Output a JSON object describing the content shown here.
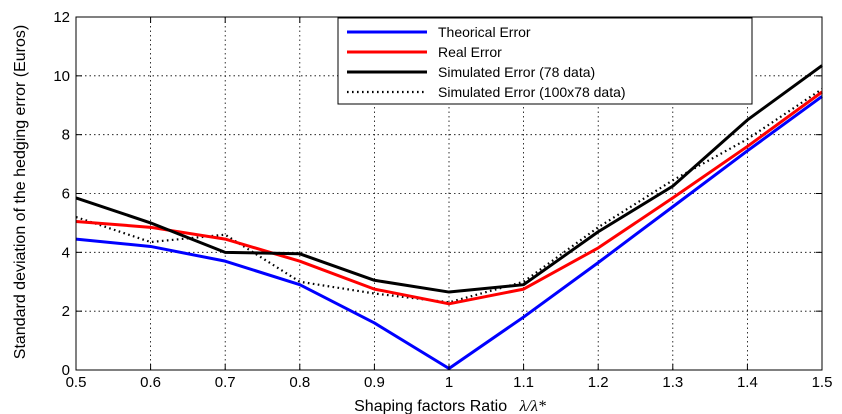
{
  "chart_data": {
    "type": "line",
    "title": "",
    "xlabel": "Shaping factors Ratio",
    "xlabel_symbol": "λ/λ*",
    "ylabel": "Standard deviation of the hedging error (Euros)",
    "x": [
      0.5,
      0.6,
      0.7,
      0.8,
      0.9,
      1.0,
      1.1,
      1.2,
      1.3,
      1.4,
      1.5
    ],
    "xlim": [
      0.5,
      1.5
    ],
    "ylim": [
      0,
      12
    ],
    "xticks": [
      "0.5",
      "0.6",
      "0.7",
      "0.8",
      "0.9",
      "1",
      "1.1",
      "1.2",
      "1.3",
      "1.4",
      "1.5"
    ],
    "yticks": [
      "0",
      "2",
      "4",
      "6",
      "8",
      "10",
      "12"
    ],
    "grid": true,
    "legend_position": "top-right",
    "series": [
      {
        "name": "Theorical Error",
        "color": "#0000ff",
        "style": "solid",
        "values": [
          4.45,
          4.2,
          3.7,
          2.9,
          1.6,
          0.05,
          1.8,
          3.65,
          5.55,
          7.45,
          9.3
        ]
      },
      {
        "name": "Real Error",
        "color": "#ff0000",
        "style": "solid",
        "values": [
          5.05,
          4.85,
          4.45,
          3.7,
          2.75,
          2.25,
          2.75,
          4.15,
          5.85,
          7.6,
          9.45
        ]
      },
      {
        "name": "Simulated Error (78 data)",
        "color": "#000000",
        "style": "solid",
        "values": [
          5.85,
          5.0,
          4.0,
          3.95,
          3.05,
          2.65,
          2.9,
          4.7,
          6.25,
          8.5,
          10.35
        ]
      },
      {
        "name": "Simulated Error (100x78 data)",
        "color": "#000000",
        "style": "dotted",
        "values": [
          5.2,
          4.35,
          4.6,
          3.0,
          2.6,
          2.3,
          3.0,
          4.85,
          6.45,
          7.85,
          9.55
        ]
      }
    ]
  }
}
